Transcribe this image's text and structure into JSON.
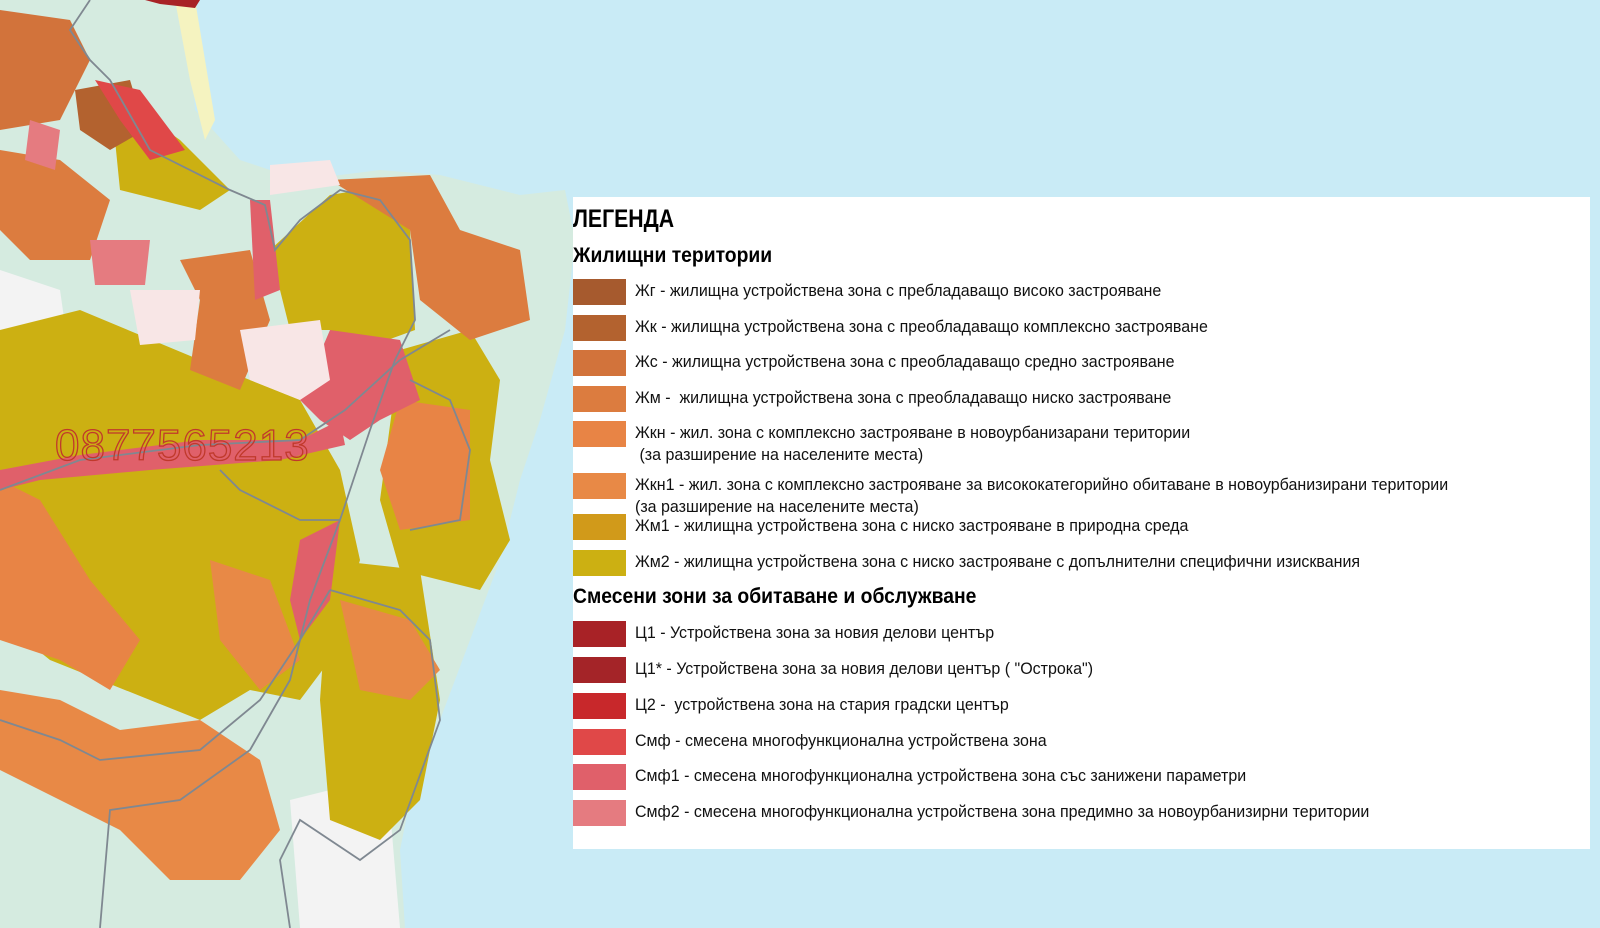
{
  "watermark": "0877565213",
  "legend": {
    "title": "ЛЕГЕНДА",
    "sections": [
      {
        "title": "Жилищни територии",
        "items": [
          {
            "label": "Жг - жилищна устройствена зона с пребладаващо високо застрояване",
            "color": "#a65a2e"
          },
          {
            "label": "Жк - жилищна устройствена зона с преобладаващо комплексно застрояване",
            "color": "#b3622f"
          },
          {
            "label": "Жс - жилищна устройствена зона с преобладаващо средно застрояване",
            "color": "#d2733b"
          },
          {
            "label": "Жм -  жилищна устройствена зона с преобладаващо ниско застрояване",
            "color": "#dc7c3f"
          },
          {
            "label": "Жкн - жил. зона с комплексно застрояване в новоурбанизарани територии\n (за разширение на населените места)",
            "color": "#e88445"
          },
          {
            "label": "Жкн1 - жил. зона с комплексно застрояване за висококатегорийно обитаване в новоурбанизирани територии\n(за разширение на населените места)",
            "color": "#e88946"
          },
          {
            "label": "Жм1 - жилищна устройствена зона с ниско застрояване в природна среда",
            "color": "#d19a1a"
          },
          {
            "label": "Жм2 - жилищна устройствена зона с ниско застрояване с допълнителни специфични изисквания",
            "color": "#ccb012"
          }
        ]
      },
      {
        "title": "Смесени зони за обитаване и обслужване",
        "items": [
          {
            "label": "Ц1 - Устройствена зона за новия делови център",
            "color": "#a82226"
          },
          {
            "label": "Ц1* - Устройствена зона за новия делови център ( \"Острока\")",
            "color": "#a42428"
          },
          {
            "label": "Ц2 -  устройствена зона на стария градски център",
            "color": "#c8282b"
          },
          {
            "label": "Смф - смесена многофункционална устройствена зона",
            "color": "#e04848"
          },
          {
            "label": "Смф1 - смесена многофункционална устройствена зона със занижени параметри",
            "color": "#e0606a"
          },
          {
            "label": "Смф2 - смесена многофункционална устройствена зона предимно за новоурбанизирни територии",
            "color": "#e57b80"
          }
        ]
      }
    ]
  },
  "map_colors": {
    "sea": "#c9ebf6",
    "land_green": "#d5ebe0",
    "land_grey": "#f3f3f3",
    "beach": "#f5f3c0",
    "road": "#7f8891"
  }
}
